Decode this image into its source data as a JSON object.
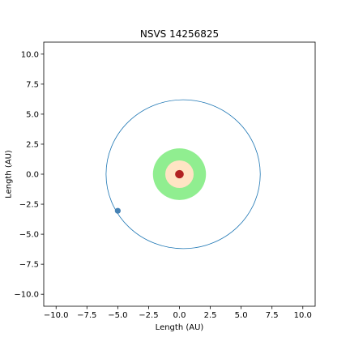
{
  "chart_data": {
    "type": "scatter",
    "title": "NSVS 14256825",
    "xlabel": "Length (AU)",
    "ylabel": "Length (AU)",
    "xlim": [
      -11,
      11
    ],
    "ylim": [
      -11,
      11
    ],
    "xticks": [
      -10.0,
      -7.5,
      -5.0,
      -2.5,
      0.0,
      2.5,
      5.0,
      7.5,
      10.0
    ],
    "yticks": [
      -10.0,
      -7.5,
      -5.0,
      -2.5,
      0.0,
      2.5,
      5.0,
      7.5,
      10.0
    ],
    "xtick_labels": [
      "−10.0",
      "−7.5",
      "−5.0",
      "−2.5",
      "0.0",
      "2.5",
      "5.0",
      "7.5",
      "10.0"
    ],
    "ytick_labels": [
      "−10.0",
      "−7.5",
      "−5.0",
      "−2.5",
      "0.0",
      "2.5",
      "5.0",
      "7.5",
      "10.0"
    ],
    "grid": false,
    "habitable_zone": {
      "inner_radius": 1.15,
      "outer_radius": 2.15,
      "color": "#90ee90"
    },
    "inner_zone": {
      "radius": 1.15,
      "color": "#ffe4c4"
    },
    "star": {
      "x": 0.0,
      "y": 0.0,
      "radius": 0.35,
      "color": "#b22222"
    },
    "orbit": {
      "center_x": 0.3,
      "center_y": 0.0,
      "semi_major": 6.25,
      "semi_minor": 6.2,
      "color": "#1f77b4"
    },
    "planet": {
      "x": -5.0,
      "y": -3.05,
      "color": "#4682b4"
    }
  }
}
